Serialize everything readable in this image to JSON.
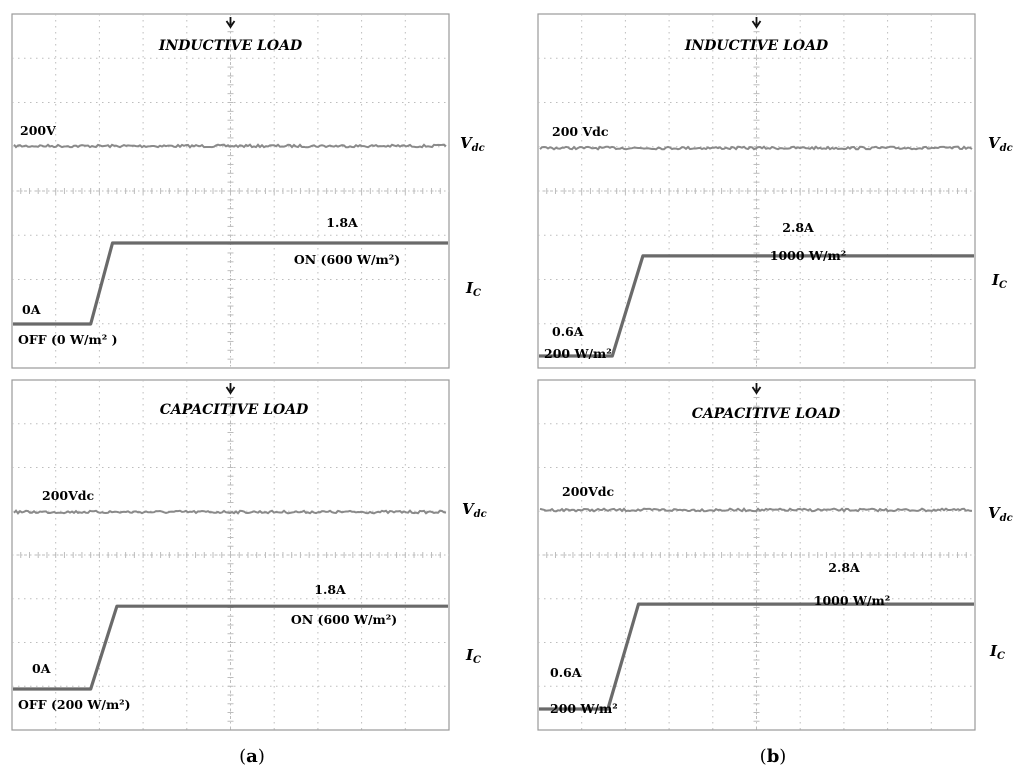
{
  "caption_a": {
    "open": "(",
    "letter": "a",
    "close": ")"
  },
  "caption_b": {
    "open": "(",
    "letter": "b",
    "close": ")"
  },
  "colors": {
    "grid": "#bdbdbd",
    "trace_vdc": "#8a8a8a",
    "trace_ic": "#6a6a6a",
    "frame": "#9a9a9a",
    "marker": "#111111"
  },
  "chart_data": [
    {
      "type": "line",
      "title": "INDUCTIVE LOAD",
      "vdc": {
        "label": "200V",
        "channel": "V",
        "channel_sub": "dc"
      },
      "ic": {
        "channel": "I",
        "channel_sub": "C",
        "low_label": "0A",
        "high_label": "1.8A",
        "low_state": "OFF (0 W/m² )",
        "high_state": "ON (600 W/m²)"
      },
      "trace_ic": {
        "x": [
          0,
          1.8,
          2.3,
          10
        ],
        "y": [
          0,
          0,
          1.8,
          1.8
        ]
      },
      "xlim": [
        0,
        10
      ],
      "ylim": [
        0,
        8
      ]
    },
    {
      "type": "line",
      "title": "INDUCTIVE LOAD",
      "vdc": {
        "label": "200 Vdc",
        "channel": "V",
        "channel_sub": "dc"
      },
      "ic": {
        "channel": "I",
        "channel_sub": "C",
        "low_label": "0.6A",
        "high_label": "2.8A",
        "low_state": "200 W/m²",
        "high_state": "1000 W/m²"
      },
      "trace_ic": {
        "x": [
          0,
          1.7,
          2.4,
          10
        ],
        "y": [
          0.6,
          0.6,
          2.8,
          2.8
        ]
      },
      "xlim": [
        0,
        10
      ],
      "ylim": [
        0,
        8
      ]
    },
    {
      "type": "line",
      "title": "CAPACITIVE LOAD",
      "vdc": {
        "label": "200Vdc",
        "channel": "V",
        "channel_sub": "dc"
      },
      "ic": {
        "channel": "I",
        "channel_sub": "C",
        "low_label": "0A",
        "high_label": "1.8A",
        "low_state": "OFF (200 W/m²)",
        "high_state": "ON (600 W/m²)"
      },
      "trace_ic": {
        "x": [
          0,
          1.8,
          2.4,
          10
        ],
        "y": [
          0,
          0,
          1.8,
          1.8
        ]
      },
      "xlim": [
        0,
        10
      ],
      "ylim": [
        0,
        8
      ]
    },
    {
      "type": "line",
      "title": "CAPACITIVE LOAD",
      "vdc": {
        "label": "200Vdc",
        "channel": "V",
        "channel_sub": "dc"
      },
      "ic": {
        "channel": "I",
        "channel_sub": "C",
        "low_label": "0.6A",
        "high_label": "2.8A",
        "low_state": "200 W/m²",
        "high_state": "1000 W/m²"
      },
      "trace_ic": {
        "x": [
          0,
          1.6,
          2.3,
          10
        ],
        "y": [
          0.6,
          0.6,
          2.8,
          2.8
        ]
      },
      "xlim": [
        0,
        10
      ],
      "ylim": [
        0,
        8
      ]
    }
  ]
}
